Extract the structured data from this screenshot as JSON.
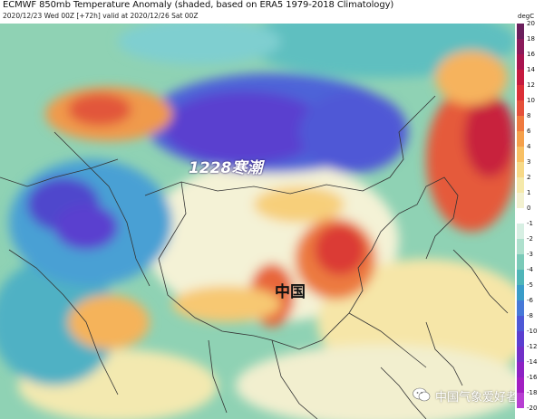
{
  "header": {
    "title": "ECMWF 850mb Temperature Anomaly (shaded, based on ERA5 1979-2018 Climatology)",
    "subtitle": "2020/12/23 Wed 00Z [+72h] valid at 2020/12/26 Sat 00Z"
  },
  "annotations": {
    "cold_wave": "1228寒潮",
    "china": "中国"
  },
  "watermark": {
    "text": "中国气象爱好者",
    "icon": "wechat-icon"
  },
  "colorbar": {
    "unit": "degC",
    "ticks": [
      "20",
      "18",
      "16",
      "14",
      "12",
      "10",
      "8",
      "6",
      "4",
      "3",
      "2",
      "1",
      "0",
      "-1",
      "-2",
      "-3",
      "-4",
      "-5",
      "-6",
      "-8",
      "-10",
      "-12",
      "-14",
      "-16",
      "-18",
      "-20"
    ],
    "colors": [
      "#6b1f5c",
      "#8b1a5a",
      "#a8144f",
      "#c51a3f",
      "#db2f37",
      "#e5503a",
      "#ef7a3f",
      "#f5a04a",
      "#f8c064",
      "#f7d987",
      "#f5e9aa",
      "#f3f1d0",
      "#ffffff",
      "#d7efe3",
      "#aee0cd",
      "#7bcab8",
      "#4fb5b8",
      "#3a9cc8",
      "#4779d8",
      "#4e58d6",
      "#5b3fd0",
      "#7230c8",
      "#8d22c4",
      "#a21fc2",
      "#b73fd2"
    ]
  },
  "colors": {
    "land_outline": "#333333",
    "cold_core": "#5a2fc4",
    "warm_core": "#d83a34"
  }
}
